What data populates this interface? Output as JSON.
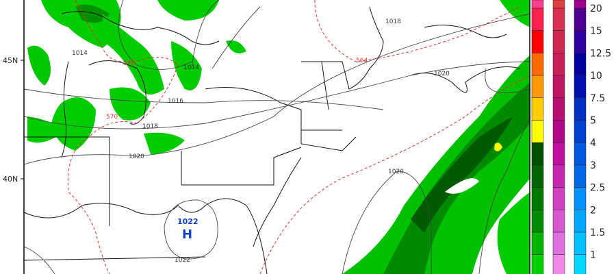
{
  "map": {
    "lat_labels": [
      "45N",
      "40N"
    ],
    "isobars": [
      "1014",
      "1014",
      "1016",
      "1018",
      "1020",
      "1018",
      "1020",
      "1020",
      "1022"
    ],
    "thickness_labels": [
      "570",
      "570",
      "564"
    ],
    "high_center": {
      "symbol": "H",
      "pressure": "1022"
    },
    "colors": {
      "precip_light": "#00d000",
      "precip_mid": "#00a000",
      "precip_dark": "#006000",
      "isobar": "#333333",
      "thickness": "#e03030"
    }
  },
  "colorbar": {
    "labels": [
      "20",
      "15",
      "12.5",
      "10",
      "7.5",
      "5",
      "4",
      "3",
      "2.5",
      "2",
      "1.5",
      "1"
    ],
    "rain": [
      "#ff4090",
      "#ff2050",
      "#ff0000",
      "#ff6a00",
      "#ff9900",
      "#ffcc00",
      "#ffff00",
      "#005000",
      "#006400",
      "#007800",
      "#008c00",
      "#00b400",
      "#00d000"
    ],
    "mix": [
      "#e04040",
      "#d83050",
      "#d02850",
      "#c82058",
      "#c01860",
      "#b81070",
      "#b00888",
      "#c010a0",
      "#c828b0",
      "#d040c0",
      "#d858d0",
      "#e070e0",
      "#f088e8"
    ],
    "snow": [
      "#a0008c",
      "#500090",
      "#3000a0",
      "#0000a0",
      "#0010b0",
      "#0030c0",
      "#0040d0",
      "#0058e0",
      "#0068e8",
      "#0090ff",
      "#00a8ff",
      "#00c0ff",
      "#00d8ff"
    ]
  }
}
